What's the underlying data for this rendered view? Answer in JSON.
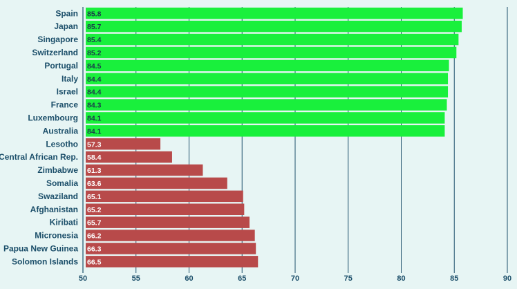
{
  "chart_data": {
    "type": "bar",
    "orientation": "horizontal",
    "title": "",
    "xlabel": "",
    "ylabel": "",
    "xlim": [
      50,
      90
    ],
    "xticks": [
      50,
      55,
      60,
      65,
      70,
      75,
      80,
      85,
      90
    ],
    "grid": "vertical",
    "categories": [
      "Spain",
      "Japan",
      "Singapore",
      "Switzerland",
      "Portugal",
      "Italy",
      "Israel",
      "France",
      "Luxembourg",
      "Australia",
      "Lesotho",
      "Central African Rep.",
      "Zimbabwe",
      "Somalia",
      "Swaziland",
      "Afghanistan",
      "Kiribati",
      "Micronesia",
      "Papua New Guinea",
      "Solomon Islands"
    ],
    "values": [
      85.8,
      85.7,
      85.4,
      85.2,
      84.5,
      84.4,
      84.4,
      84.3,
      84.1,
      84.1,
      57.3,
      58.4,
      61.3,
      63.6,
      65.1,
      65.2,
      65.7,
      66.2,
      66.3,
      66.5
    ],
    "value_labels": [
      "85.8",
      "85.7",
      "85.4",
      "85.2",
      "84.5",
      "84.4",
      "84.4",
      "84.3",
      "84.1",
      "84.1",
      "57.3",
      "58.4",
      "61.3",
      "63.6",
      "65.1",
      "65.2",
      "65.7",
      "66.2",
      "66.3",
      "66.5"
    ],
    "groups": [
      {
        "count": 10,
        "color": "#19f03c",
        "label_color": "#1b3a4b"
      },
      {
        "count": 10,
        "color": "#b84a4a",
        "label_color": "#ffffff"
      }
    ],
    "colors": {
      "background": "#e7f5f4",
      "gridline": "#1c4f6a",
      "text": "#1c4f6a"
    }
  }
}
